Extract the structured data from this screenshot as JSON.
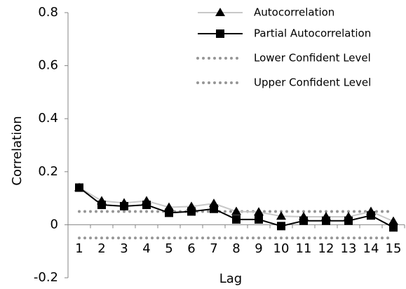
{
  "chart_data": {
    "type": "line",
    "y_label": "Correlation",
    "x_label": "Lag",
    "categories": [
      "1",
      "2",
      "3",
      "4",
      "5",
      "6",
      "7",
      "8",
      "9",
      "10",
      "11",
      "12",
      "13",
      "14",
      "15"
    ],
    "ylim": [
      -0.2,
      0.8
    ],
    "yticks": [
      -0.2,
      0,
      0.2,
      0.4,
      0.6,
      0.8
    ],
    "legend": "top-right",
    "series": [
      {
        "name": "Autocorrelation",
        "color": "#c8c8c8",
        "marker": "triangle",
        "marker_color": "#000000",
        "line_style": "solid",
        "values": [
          0.14,
          0.09,
          0.082,
          0.09,
          0.066,
          0.069,
          0.08,
          0.05,
          0.048,
          0.032,
          0.03,
          0.03,
          0.03,
          0.05,
          0.013
        ]
      },
      {
        "name": "Partial Autocorrelation",
        "color": "#000000",
        "marker": "square",
        "marker_color": "#000000",
        "line_style": "solid",
        "values": [
          0.14,
          0.075,
          0.07,
          0.075,
          0.045,
          0.05,
          0.06,
          0.02,
          0.02,
          -0.005,
          0.015,
          0.015,
          0.015,
          0.035,
          -0.01
        ]
      },
      {
        "name": "Lower Confident Level",
        "color": "#969696",
        "line_style": "dotted",
        "values": [
          -0.05,
          -0.05,
          -0.05,
          -0.05,
          -0.05,
          -0.05,
          -0.05,
          -0.05,
          -0.05,
          -0.05,
          -0.05,
          -0.05,
          -0.05,
          -0.05,
          -0.05
        ]
      },
      {
        "name": "Upper Confident Level",
        "color": "#969696",
        "line_style": "dotted",
        "values": [
          0.05,
          0.05,
          0.05,
          0.05,
          0.05,
          0.05,
          0.05,
          0.05,
          0.05,
          0.05,
          0.05,
          0.05,
          0.05,
          0.05,
          0.05
        ]
      }
    ]
  }
}
